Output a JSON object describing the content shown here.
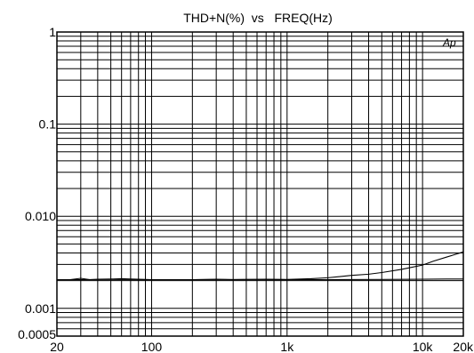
{
  "chart_data": {
    "type": "line",
    "title": "THD+N(%)  vs   FREQ(Hz)",
    "xlabel": "",
    "ylabel": "",
    "x_scale": "log",
    "y_scale": "log",
    "xlim": [
      20,
      20000
    ],
    "ylim": [
      0.0005,
      1
    ],
    "grid": true,
    "x_tick_labels": [
      {
        "value": 20,
        "label": "20"
      },
      {
        "value": 100,
        "label": "100"
      },
      {
        "value": 1000,
        "label": "1k"
      },
      {
        "value": 10000,
        "label": "10k"
      },
      {
        "value": 20000,
        "label": "20k"
      }
    ],
    "y_tick_labels": [
      {
        "value": 1,
        "label": "1"
      },
      {
        "value": 0.1,
        "label": "0.1"
      },
      {
        "value": 0.01,
        "label": "0.010"
      },
      {
        "value": 0.001,
        "label": "0.001"
      },
      {
        "value": 0.0005,
        "label": "0.0005"
      }
    ],
    "annotation": "Ap",
    "series": [
      {
        "x": [
          20,
          25,
          30,
          35,
          40,
          50,
          60,
          70,
          80,
          100,
          150,
          200,
          300,
          400,
          500,
          700,
          1000,
          1500,
          2000,
          3000,
          4000,
          5000,
          7000,
          10000,
          12000,
          15000,
          20000
        ],
        "y": [
          0.00205,
          0.00205,
          0.00212,
          0.00205,
          0.00207,
          0.00208,
          0.0021,
          0.00208,
          0.00207,
          0.00205,
          0.00205,
          0.00205,
          0.00207,
          0.00205,
          0.00206,
          0.00207,
          0.00206,
          0.0021,
          0.00215,
          0.00228,
          0.00235,
          0.00245,
          0.00265,
          0.00295,
          0.00325,
          0.0036,
          0.0041
        ]
      },
      {
        "x": [
          20,
          30,
          50,
          100,
          200,
          500,
          1000,
          2000,
          5000,
          10000,
          15000,
          20000
        ],
        "y": [
          0.00205,
          0.00205,
          0.00206,
          0.00205,
          0.00205,
          0.00206,
          0.00205,
          0.00205,
          0.00206,
          0.00207,
          0.00208,
          0.00208
        ]
      }
    ]
  }
}
